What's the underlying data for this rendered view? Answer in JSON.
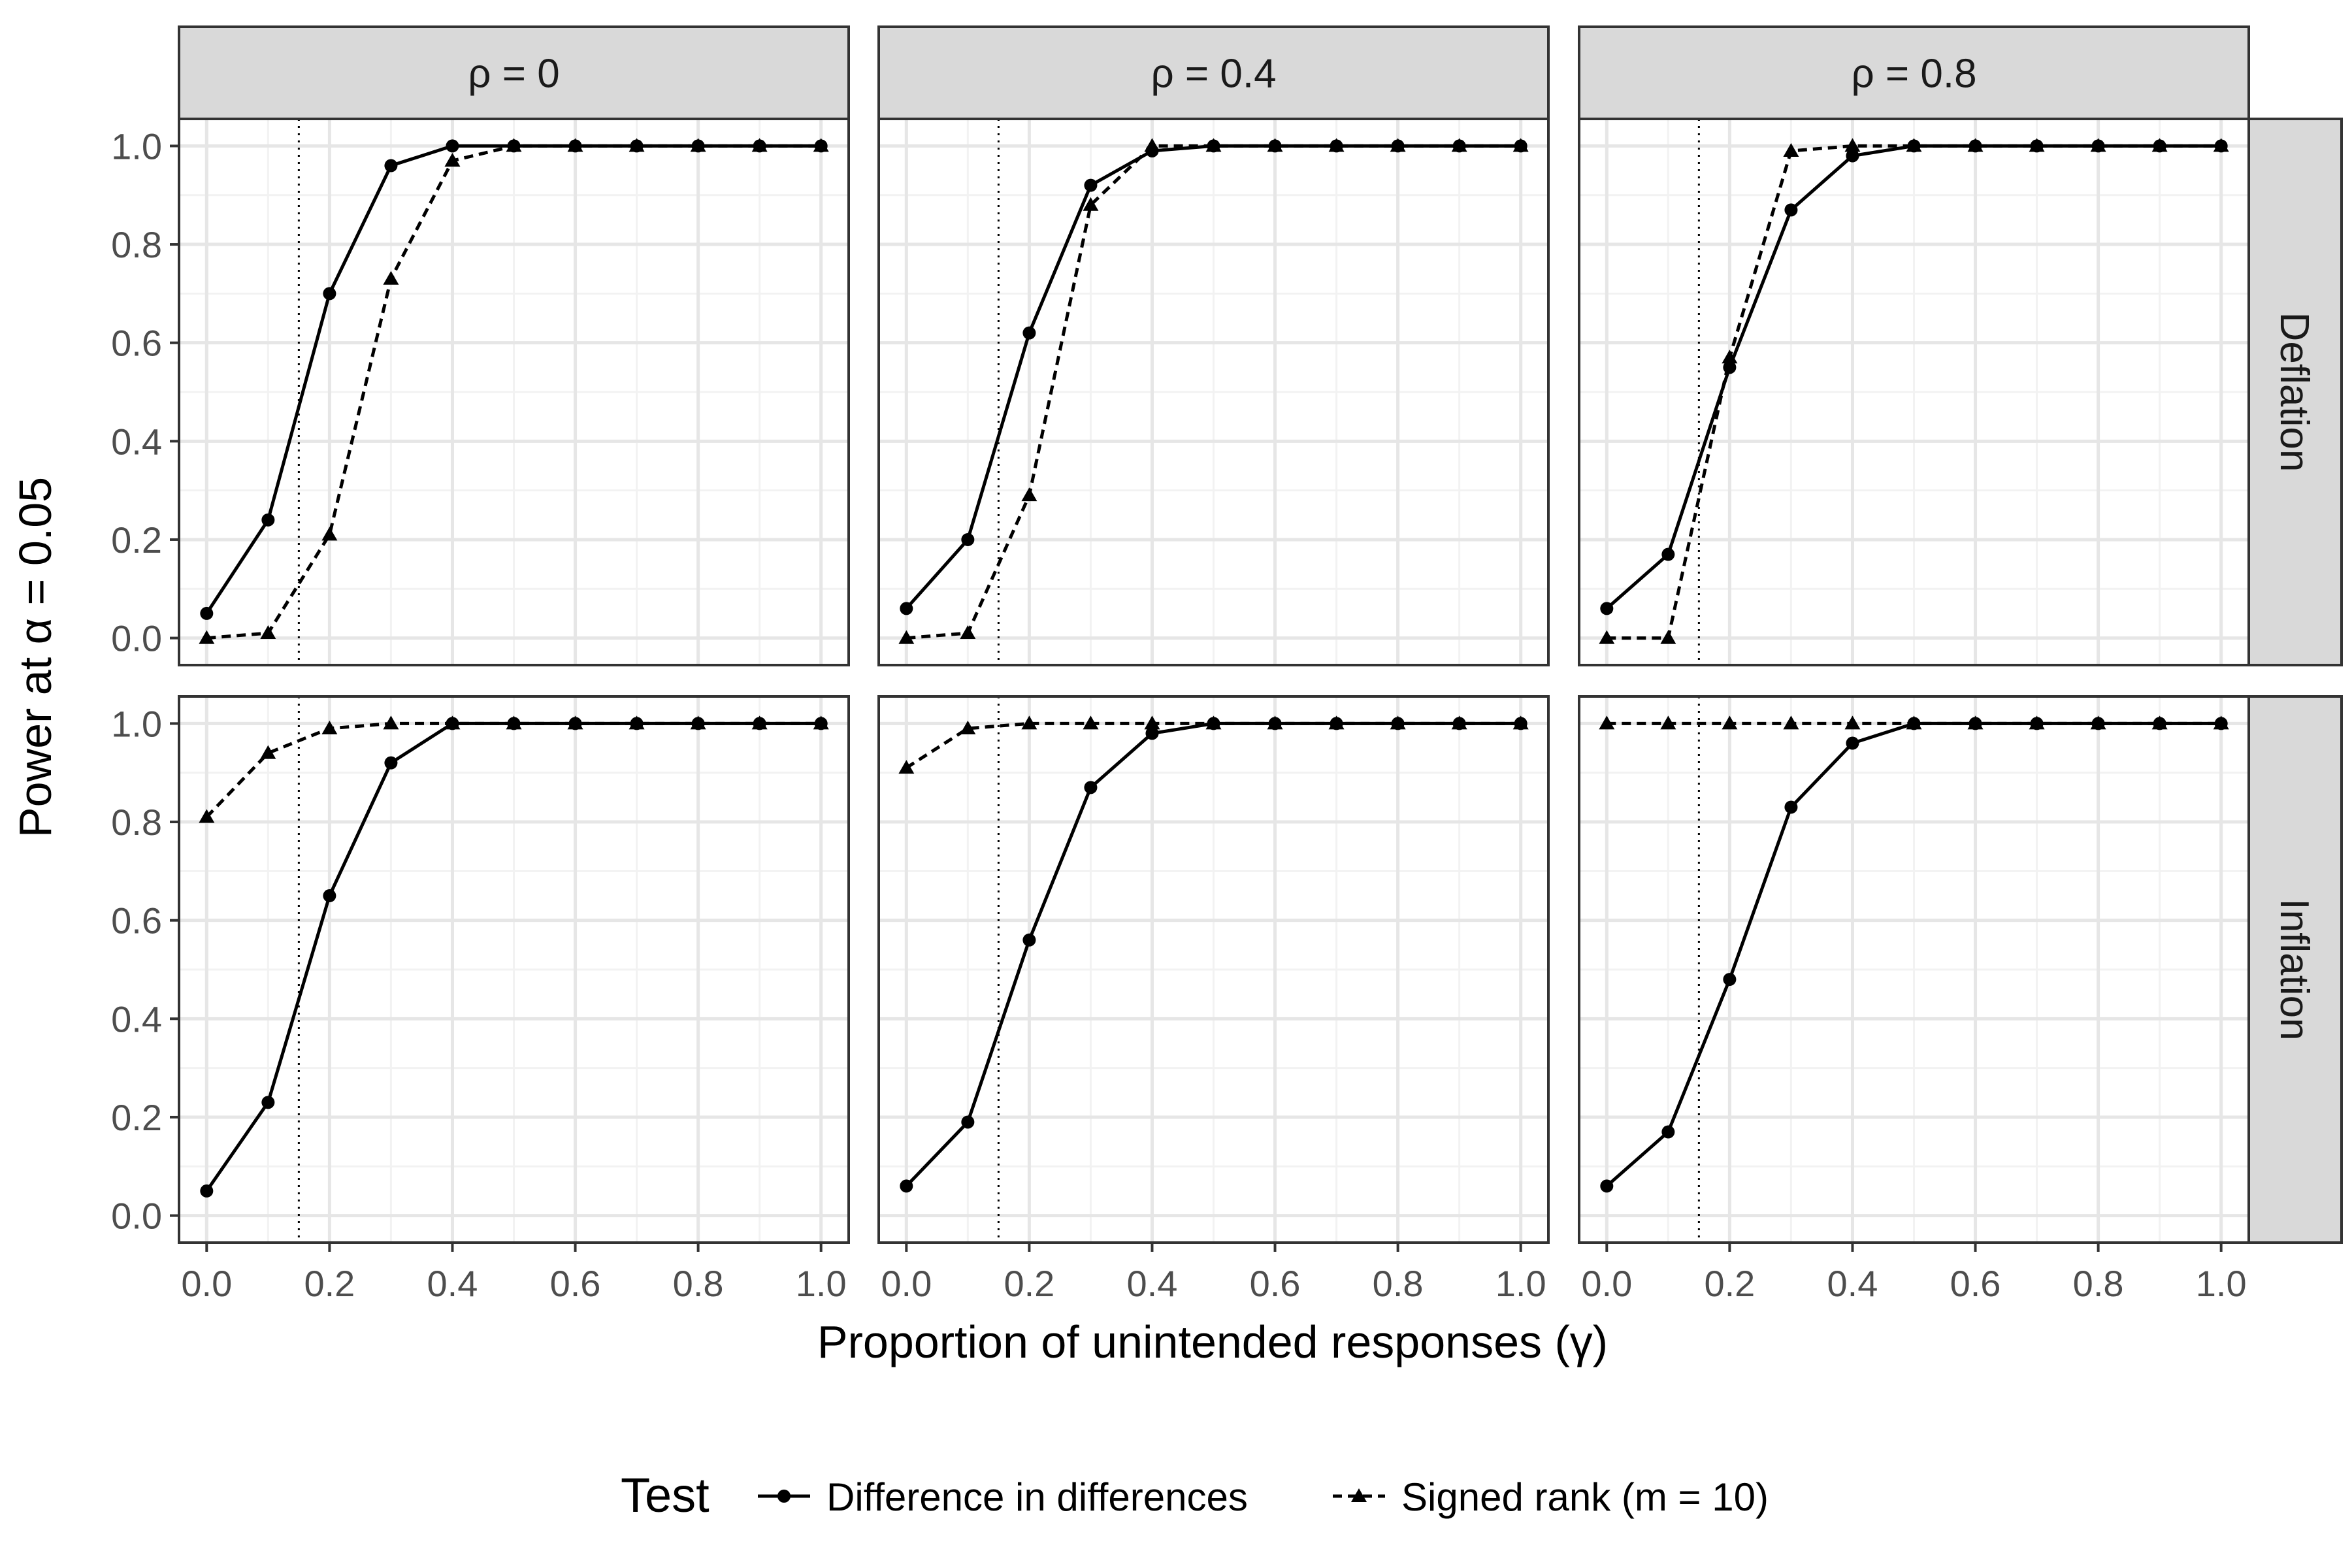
{
  "chart_data": {
    "type": "line",
    "facet_columns": [
      "ρ = 0",
      "ρ = 0.4",
      "ρ = 0.8"
    ],
    "facet_rows": [
      "Deflation",
      "Inflation"
    ],
    "xlabel": "Proportion of unintended responses (γ)",
    "ylabel": "Power at α = 0.05",
    "xlim": [
      0,
      1
    ],
    "ylim": [
      0,
      1
    ],
    "x_ticks": [
      "0.0",
      "0.2",
      "0.4",
      "0.6",
      "0.8",
      "1.0"
    ],
    "y_ticks": [
      "0.0",
      "0.2",
      "0.4",
      "0.6",
      "0.8",
      "1.0"
    ],
    "reference_line_x": 0.15,
    "grid": true,
    "legend": {
      "title": "Test",
      "position": "bottom",
      "entries": [
        "Difference in differences",
        "Signed rank (m = 10)"
      ]
    },
    "x": [
      0,
      0.1,
      0.2,
      0.3,
      0.4,
      0.5,
      0.6,
      0.7,
      0.8,
      0.9,
      1.0
    ],
    "panels": [
      {
        "row": "Deflation",
        "col": "ρ = 0",
        "series": [
          {
            "name": "Difference in differences",
            "values": [
              0.05,
              0.24,
              0.7,
              0.96,
              1.0,
              1.0,
              1.0,
              1.0,
              1.0,
              1.0,
              1.0
            ]
          },
          {
            "name": "Signed rank (m = 10)",
            "values": [
              0.0,
              0.01,
              0.21,
              0.73,
              0.97,
              1.0,
              1.0,
              1.0,
              1.0,
              1.0,
              1.0
            ]
          }
        ]
      },
      {
        "row": "Deflation",
        "col": "ρ = 0.4",
        "series": [
          {
            "name": "Difference in differences",
            "values": [
              0.06,
              0.2,
              0.62,
              0.92,
              0.99,
              1.0,
              1.0,
              1.0,
              1.0,
              1.0,
              1.0
            ]
          },
          {
            "name": "Signed rank (m = 10)",
            "values": [
              0.0,
              0.01,
              0.29,
              0.88,
              1.0,
              1.0,
              1.0,
              1.0,
              1.0,
              1.0,
              1.0
            ]
          }
        ]
      },
      {
        "row": "Deflation",
        "col": "ρ = 0.8",
        "series": [
          {
            "name": "Difference in differences",
            "values": [
              0.06,
              0.17,
              0.55,
              0.87,
              0.98,
              1.0,
              1.0,
              1.0,
              1.0,
              1.0,
              1.0
            ]
          },
          {
            "name": "Signed rank (m = 10)",
            "values": [
              0.0,
              0.0,
              0.57,
              0.99,
              1.0,
              1.0,
              1.0,
              1.0,
              1.0,
              1.0,
              1.0
            ]
          }
        ]
      },
      {
        "row": "Inflation",
        "col": "ρ = 0",
        "series": [
          {
            "name": "Difference in differences",
            "values": [
              0.05,
              0.23,
              0.65,
              0.92,
              1.0,
              1.0,
              1.0,
              1.0,
              1.0,
              1.0,
              1.0
            ]
          },
          {
            "name": "Signed rank (m = 10)",
            "values": [
              0.81,
              0.94,
              0.99,
              1.0,
              1.0,
              1.0,
              1.0,
              1.0,
              1.0,
              1.0,
              1.0
            ]
          }
        ]
      },
      {
        "row": "Inflation",
        "col": "ρ = 0.4",
        "series": [
          {
            "name": "Difference in differences",
            "values": [
              0.06,
              0.19,
              0.56,
              0.87,
              0.98,
              1.0,
              1.0,
              1.0,
              1.0,
              1.0,
              1.0
            ]
          },
          {
            "name": "Signed rank (m = 10)",
            "values": [
              0.91,
              0.99,
              1.0,
              1.0,
              1.0,
              1.0,
              1.0,
              1.0,
              1.0,
              1.0,
              1.0
            ]
          }
        ]
      },
      {
        "row": "Inflation",
        "col": "ρ = 0.8",
        "series": [
          {
            "name": "Difference in differences",
            "values": [
              0.06,
              0.17,
              0.48,
              0.83,
              0.96,
              1.0,
              1.0,
              1.0,
              1.0,
              1.0,
              1.0
            ]
          },
          {
            "name": "Signed rank (m = 10)",
            "values": [
              1.0,
              1.0,
              1.0,
              1.0,
              1.0,
              1.0,
              1.0,
              1.0,
              1.0,
              1.0,
              1.0
            ]
          }
        ]
      }
    ]
  }
}
